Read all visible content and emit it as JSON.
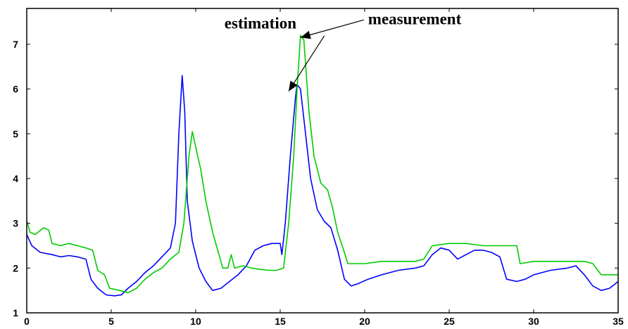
{
  "chart_data": {
    "type": "line",
    "title": "",
    "xlabel": "",
    "ylabel": "",
    "xlim": [
      0,
      35
    ],
    "ylim": [
      1,
      7.8
    ],
    "x_ticks": [
      0,
      5,
      10,
      15,
      20,
      25,
      30,
      35
    ],
    "y_ticks": [
      1,
      2,
      3,
      4,
      5,
      6,
      7
    ],
    "grid": false,
    "legend": "none",
    "series": [
      {
        "color": "#0000ff",
        "points": [
          [
            0,
            2.75
          ],
          [
            0.3,
            2.5
          ],
          [
            0.8,
            2.35
          ],
          [
            1.5,
            2.3
          ],
          [
            2,
            2.25
          ],
          [
            2.5,
            2.28
          ],
          [
            3,
            2.25
          ],
          [
            3.5,
            2.2
          ],
          [
            3.8,
            1.75
          ],
          [
            4.2,
            1.55
          ],
          [
            4.7,
            1.4
          ],
          [
            5.2,
            1.38
          ],
          [
            5.6,
            1.4
          ],
          [
            6,
            1.55
          ],
          [
            6.5,
            1.7
          ],
          [
            7,
            1.9
          ],
          [
            7.5,
            2.05
          ],
          [
            8,
            2.25
          ],
          [
            8.5,
            2.45
          ],
          [
            8.8,
            3.0
          ],
          [
            9.0,
            5.0
          ],
          [
            9.2,
            6.3
          ],
          [
            9.35,
            5.5
          ],
          [
            9.5,
            3.5
          ],
          [
            9.8,
            2.6
          ],
          [
            10.2,
            2.0
          ],
          [
            10.6,
            1.7
          ],
          [
            11.0,
            1.5
          ],
          [
            11.5,
            1.55
          ],
          [
            12,
            1.7
          ],
          [
            12.5,
            1.85
          ],
          [
            13,
            2.05
          ],
          [
            13.5,
            2.4
          ],
          [
            14,
            2.5
          ],
          [
            14.5,
            2.55
          ],
          [
            15.0,
            2.55
          ],
          [
            15.1,
            2.3
          ],
          [
            15.3,
            3.0
          ],
          [
            15.6,
            4.5
          ],
          [
            15.9,
            5.8
          ],
          [
            16.0,
            6.1
          ],
          [
            16.2,
            6.0
          ],
          [
            16.5,
            5.0
          ],
          [
            16.8,
            4.0
          ],
          [
            17.2,
            3.3
          ],
          [
            17.6,
            3.05
          ],
          [
            18.0,
            2.9
          ],
          [
            18.4,
            2.4
          ],
          [
            18.8,
            1.75
          ],
          [
            19.2,
            1.6
          ],
          [
            19.6,
            1.65
          ],
          [
            20.2,
            1.75
          ],
          [
            21,
            1.85
          ],
          [
            22,
            1.95
          ],
          [
            23,
            2.0
          ],
          [
            23.5,
            2.05
          ],
          [
            24,
            2.3
          ],
          [
            24.5,
            2.45
          ],
          [
            25,
            2.4
          ],
          [
            25.5,
            2.2
          ],
          [
            26,
            2.3
          ],
          [
            26.5,
            2.4
          ],
          [
            27,
            2.4
          ],
          [
            27.5,
            2.35
          ],
          [
            28.0,
            2.25
          ],
          [
            28.4,
            1.75
          ],
          [
            29,
            1.7
          ],
          [
            29.5,
            1.75
          ],
          [
            30,
            1.85
          ],
          [
            31,
            1.95
          ],
          [
            32,
            2.0
          ],
          [
            32.5,
            2.05
          ],
          [
            33,
            1.85
          ],
          [
            33.5,
            1.6
          ],
          [
            34,
            1.5
          ],
          [
            34.5,
            1.55
          ],
          [
            35,
            1.7
          ]
        ]
      },
      {
        "color": "#00cc00",
        "points": [
          [
            0,
            3.05
          ],
          [
            0.2,
            2.8
          ],
          [
            0.5,
            2.75
          ],
          [
            1.0,
            2.9
          ],
          [
            1.3,
            2.85
          ],
          [
            1.5,
            2.55
          ],
          [
            2,
            2.5
          ],
          [
            2.5,
            2.55
          ],
          [
            3,
            2.5
          ],
          [
            3.5,
            2.45
          ],
          [
            3.9,
            2.4
          ],
          [
            4.2,
            1.95
          ],
          [
            4.6,
            1.85
          ],
          [
            4.9,
            1.55
          ],
          [
            5.5,
            1.5
          ],
          [
            6,
            1.45
          ],
          [
            6.5,
            1.55
          ],
          [
            7,
            1.75
          ],
          [
            7.5,
            1.9
          ],
          [
            8,
            2.0
          ],
          [
            8.5,
            2.2
          ],
          [
            9.0,
            2.35
          ],
          [
            9.3,
            3.0
          ],
          [
            9.6,
            4.5
          ],
          [
            9.8,
            5.05
          ],
          [
            10.0,
            4.7
          ],
          [
            10.3,
            4.2
          ],
          [
            10.6,
            3.5
          ],
          [
            11.0,
            2.8
          ],
          [
            11.3,
            2.4
          ],
          [
            11.6,
            2.0
          ],
          [
            11.9,
            2.0
          ],
          [
            12.1,
            2.3
          ],
          [
            12.3,
            2.0
          ],
          [
            12.8,
            2.05
          ],
          [
            13.3,
            2.0
          ],
          [
            13.8,
            1.97
          ],
          [
            14.3,
            1.95
          ],
          [
            14.8,
            1.95
          ],
          [
            15.2,
            2.0
          ],
          [
            15.5,
            3.0
          ],
          [
            15.8,
            4.5
          ],
          [
            16.0,
            6.0
          ],
          [
            16.2,
            7.2
          ],
          [
            16.4,
            7.1
          ],
          [
            16.7,
            5.5
          ],
          [
            17.0,
            4.5
          ],
          [
            17.4,
            3.9
          ],
          [
            17.8,
            3.75
          ],
          [
            18.1,
            3.35
          ],
          [
            18.4,
            2.8
          ],
          [
            18.8,
            2.35
          ],
          [
            19.0,
            2.1
          ],
          [
            19.5,
            2.1
          ],
          [
            20,
            2.1
          ],
          [
            21,
            2.15
          ],
          [
            22,
            2.15
          ],
          [
            23,
            2.15
          ],
          [
            23.5,
            2.2
          ],
          [
            24,
            2.5
          ],
          [
            25,
            2.55
          ],
          [
            26,
            2.55
          ],
          [
            27,
            2.5
          ],
          [
            28,
            2.5
          ],
          [
            29,
            2.5
          ],
          [
            29.2,
            2.1
          ],
          [
            30,
            2.15
          ],
          [
            31,
            2.15
          ],
          [
            32,
            2.15
          ],
          [
            33,
            2.15
          ],
          [
            33.5,
            2.1
          ],
          [
            34,
            1.85
          ],
          [
            34.5,
            1.85
          ],
          [
            35,
            1.85
          ]
        ]
      }
    ],
    "annotations": [
      {
        "text": "estimation",
        "x": 11.7,
        "y": 7.35,
        "target": [
          15.5,
          5.95
        ]
      },
      {
        "text": "measurement",
        "x": 20.2,
        "y": 7.45,
        "target": [
          16.2,
          7.15
        ]
      }
    ]
  }
}
